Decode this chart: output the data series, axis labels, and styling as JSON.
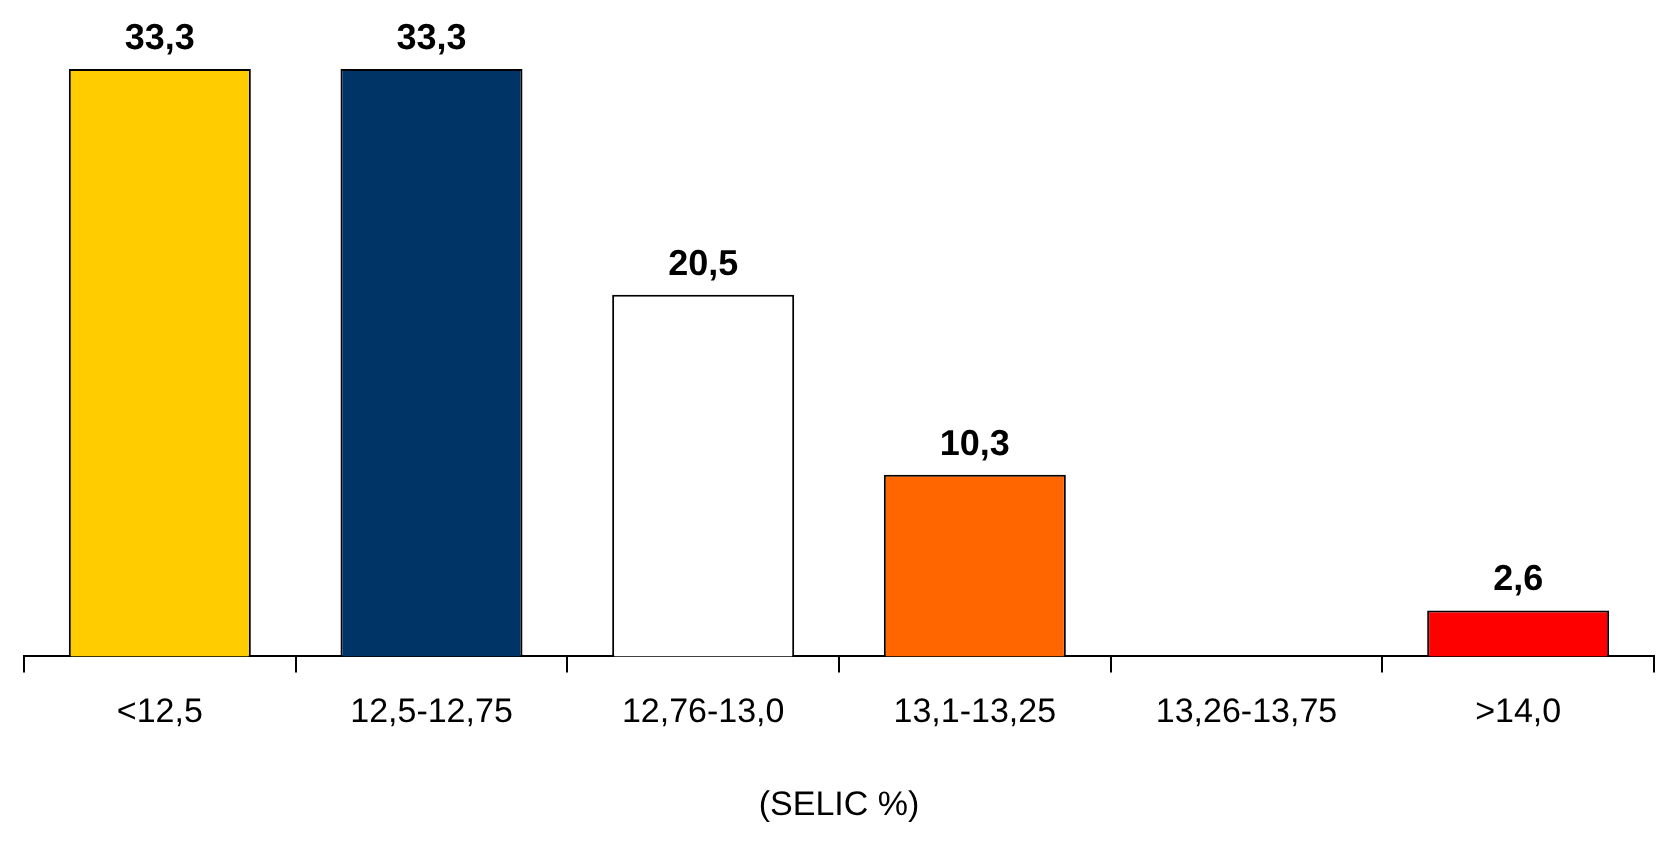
{
  "chart_data": {
    "type": "bar",
    "xlabel": "(SELIC %)",
    "categories": [
      "<12,5",
      "12,5-12,75",
      "12,76-13,0",
      "13,1-13,25",
      "13,26-13,75",
      ">14,0"
    ],
    "values": [
      33.3,
      33.3,
      20.5,
      10.3,
      null,
      2.6
    ],
    "colors": [
      "#ffcc00",
      "#003366",
      "#ffffff",
      "#ff6600",
      "#ffffff",
      "#ff0000"
    ],
    "value_labels": [
      "33,3",
      "33,3",
      "20,5",
      "10,3",
      null,
      "2,6"
    ],
    "grid": false,
    "legend": false
  }
}
